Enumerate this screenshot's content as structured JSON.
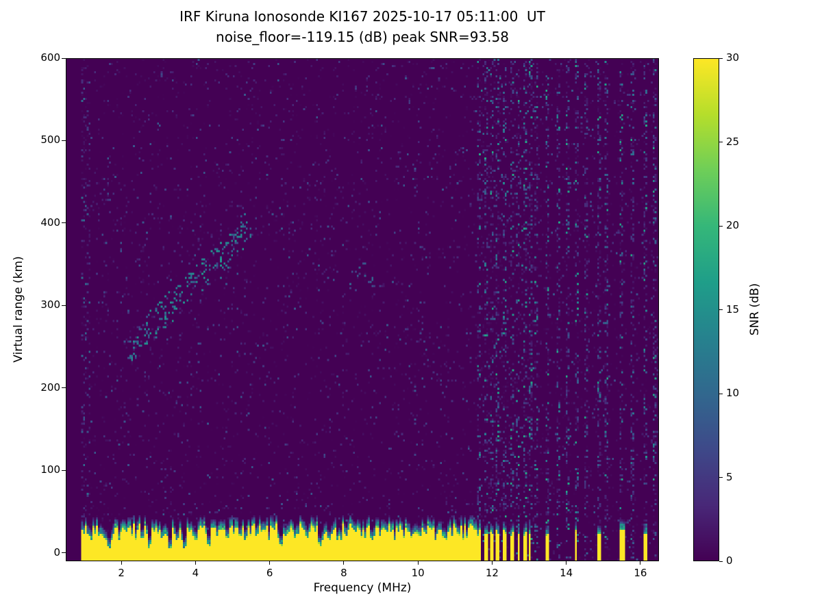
{
  "chart_data": {
    "type": "heatmap",
    "title_line1": "IRF Kiruna Ionosonde KI167 2025-10-17 05:11:00  UT",
    "title_line2": "noise_floor=-119.15 (dB) peak SNR=93.58",
    "xlabel": "Frequency (MHz)",
    "ylabel": "Virtual range (km)",
    "colorbar_label": "SNR (dB)",
    "x_range_mhz": [
      0.5,
      16.5
    ],
    "y_range_km": [
      -10,
      600
    ],
    "snr_range_db": [
      0,
      30
    ],
    "x_ticks": [
      2,
      4,
      6,
      8,
      10,
      12,
      14,
      16
    ],
    "y_ticks": [
      0,
      100,
      200,
      300,
      400,
      500,
      600
    ],
    "colorbar_ticks": [
      0,
      5,
      10,
      15,
      20,
      25,
      30
    ],
    "colormap": "viridis",
    "colormap_stops": [
      "#440154",
      "#482878",
      "#3e4989",
      "#31688e",
      "#26828e",
      "#1f9e89",
      "#35b779",
      "#6ece58",
      "#b5de2b",
      "#fde725"
    ],
    "legend_position": "right-colorbar",
    "grid_on": false,
    "seed": 167,
    "grid": {
      "nx": 320,
      "ny": 244
    },
    "features": {
      "data_start_mhz": 0.88,
      "background_snr_db": 0,
      "noise_speckle": {
        "probability": 0.055,
        "mean_db": 2.2,
        "max_db": 8
      },
      "dense_left_edge_max_mhz": 1.15,
      "ground_band": {
        "max_freq_mhz": 11.6,
        "top_km_mean": 24,
        "top_km_jitter": 10,
        "saturated_db": 30,
        "fringe_km": 12,
        "notches_mhz": [
          1.65,
          2.75,
          3.3,
          3.68,
          4.35,
          6.3,
          7.35
        ]
      },
      "rf_strips_mhz": [
        [
          11.62,
          11.72
        ],
        [
          11.8,
          11.88
        ],
        [
          11.96,
          12.04
        ],
        [
          12.12,
          12.2
        ],
        [
          12.3,
          12.38
        ],
        [
          12.5,
          12.58
        ],
        [
          12.68,
          12.75
        ],
        [
          12.86,
          12.93
        ],
        [
          13.0,
          13.06
        ],
        [
          13.45,
          13.56
        ],
        [
          14.26,
          14.32
        ],
        [
          14.85,
          14.97
        ],
        [
          15.44,
          15.62
        ],
        [
          16.08,
          16.22
        ]
      ],
      "interference_columns_mhz": [
        11.67,
        11.84,
        12.0,
        12.16,
        12.34,
        12.54,
        12.71,
        12.89,
        13.03,
        13.22,
        13.5,
        13.8,
        14.05,
        14.29,
        14.55,
        14.9,
        15.12,
        15.5,
        15.78,
        16.15,
        16.38
      ],
      "echo_trace": {
        "points_mhz_km": [
          [
            2.3,
            252
          ],
          [
            2.55,
            265
          ],
          [
            2.8,
            278
          ],
          [
            3.05,
            290
          ],
          [
            3.3,
            298
          ],
          [
            3.55,
            308
          ],
          [
            3.8,
            322
          ],
          [
            4.05,
            335
          ],
          [
            4.3,
            345
          ],
          [
            4.55,
            352
          ],
          [
            4.8,
            362
          ],
          [
            5.0,
            372
          ],
          [
            5.2,
            385
          ],
          [
            5.35,
            398
          ]
        ],
        "snr_db_range": [
          6,
          16
        ],
        "scatter_km": 18,
        "density": 14
      },
      "secondary_echo": {
        "points_mhz_km": [
          [
            8.3,
            330
          ],
          [
            8.5,
            342
          ],
          [
            8.65,
            325
          ]
        ],
        "snr_db_range": [
          5,
          10
        ],
        "scatter_km": 12,
        "density": 6
      }
    }
  }
}
